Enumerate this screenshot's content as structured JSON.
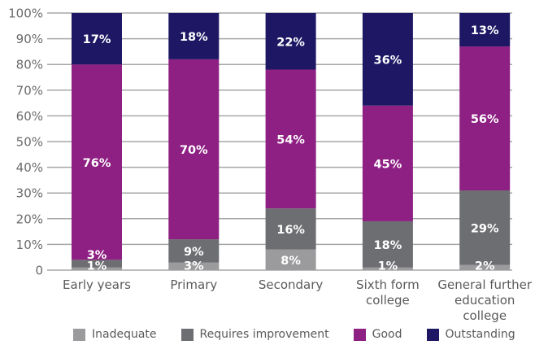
{
  "chart_data": {
    "type": "bar",
    "stacked": true,
    "title": "",
    "xlabel": "",
    "ylabel": "",
    "ylim": [
      0,
      100
    ],
    "yticks": [
      "0",
      "10%",
      "20%",
      "30%",
      "40%",
      "50%",
      "60%",
      "70%",
      "80%",
      "90%",
      "100%"
    ],
    "grid": true,
    "legend_position": "bottom",
    "categories": [
      [
        "Early years"
      ],
      [
        "Primary"
      ],
      [
        "Secondary"
      ],
      [
        "Sixth form",
        "college"
      ],
      [
        "General further",
        "education",
        "college"
      ]
    ],
    "series": [
      {
        "name": "Inadequate",
        "color": "#9b9b9d",
        "values": [
          1,
          3,
          8,
          1,
          2
        ]
      },
      {
        "name": "Requires improvement",
        "color": "#6d6e71",
        "values": [
          3,
          9,
          16,
          18,
          29
        ]
      },
      {
        "name": "Good",
        "color": "#8e1f83",
        "values": [
          76,
          70,
          54,
          45,
          56
        ]
      },
      {
        "name": "Outstanding",
        "color": "#1d1764",
        "values": [
          17,
          18,
          22,
          36,
          13
        ]
      }
    ]
  },
  "legend": [
    {
      "label": "Inadequate",
      "color": "#9b9b9d"
    },
    {
      "label": "Requires improvement",
      "color": "#6d6e71"
    },
    {
      "label": "Good",
      "color": "#8e1f83"
    },
    {
      "label": "Outstanding",
      "color": "#1d1764"
    }
  ]
}
